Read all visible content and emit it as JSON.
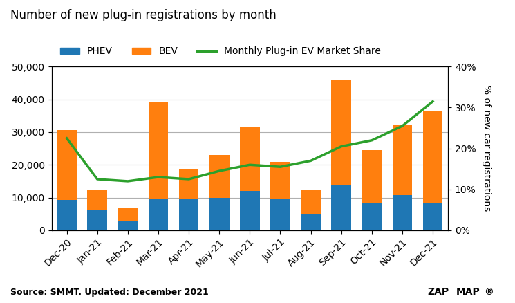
{
  "chart_data": {
    "type": "bar",
    "stacked": true,
    "title": "Number of new plug-in registrations by month",
    "y2label": "% of new car registrations",
    "annotations": [
      "Source: SMMT. Updated: December 2021",
      "ZAP",
      "MAP",
      "®"
    ],
    "categories": [
      "Dec-20",
      "Jan-21",
      "Feb-21",
      "Mar-21",
      "Apr-21",
      "May-21",
      "Jun-21",
      "Jul-21",
      "Aug-21",
      "Sep-21",
      "Oct-21",
      "Nov-21",
      "Dec-21"
    ],
    "series": [
      {
        "name": "PHEV",
        "values": [
          9200,
          6000,
          3000,
          9800,
          9500,
          10000,
          12000,
          9800,
          5000,
          14000,
          8500,
          10800,
          8500
        ]
      },
      {
        "name": "BEV",
        "values": [
          21500,
          6500,
          3700,
          29500,
          9200,
          13000,
          19700,
          11000,
          7500,
          32000,
          16000,
          21500,
          28000
        ]
      },
      {
        "name": "Monthly Plug-in EV Market Share",
        "type": "line",
        "axis": "y2",
        "values": [
          22.5,
          12.5,
          12.0,
          13.0,
          12.5,
          14.5,
          16.0,
          15.5,
          17.0,
          20.5,
          22.0,
          25.5,
          31.5
        ]
      }
    ],
    "ylim": [
      0,
      50000
    ],
    "yticks": [
      0,
      {
        "value": 10000,
        "label": "10,000"
      },
      {
        "value": 20000,
        "label": "20,000"
      },
      {
        "value": 30000,
        "label": "30,000"
      },
      {
        "value": 40000,
        "label": "40,000"
      },
      {
        "value": 50000,
        "label": "50,000"
      }
    ],
    "y2lim": [
      0,
      40
    ],
    "y2ticks": [
      {
        "value": 0,
        "label": "0%"
      },
      {
        "value": 10,
        "label": "10%"
      },
      {
        "value": 20,
        "label": "20%"
      },
      {
        "value": 30,
        "label": "30%"
      },
      {
        "value": 40,
        "label": "40%"
      }
    ],
    "grid": true,
    "legend": "lower left"
  }
}
